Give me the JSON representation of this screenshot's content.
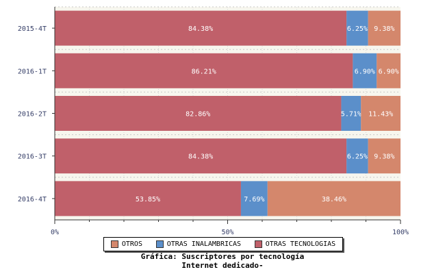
{
  "chart_data": {
    "type": "bar",
    "orientation": "horizontal",
    "stacked": true,
    "categories": [
      "2015-4T",
      "2016-1T",
      "2016-2T",
      "2016-3T",
      "2016-4T"
    ],
    "series": [
      {
        "name": "OTRAS TECNOLOGIAS",
        "color": "#c0606a",
        "values": [
          84.38,
          86.21,
          82.86,
          84.38,
          53.85
        ],
        "labels": [
          "84.38%",
          "86.21%",
          "82.86%",
          "84.38%",
          "53.85%"
        ]
      },
      {
        "name": "OTRAS INALAMBRICAS",
        "color": "#5b8fca",
        "values": [
          6.25,
          6.9,
          5.71,
          6.25,
          7.69
        ],
        "labels": [
          "6.25%",
          "6.90%",
          "5.71%",
          "6.25%",
          "7.69%"
        ]
      },
      {
        "name": "OTROS",
        "color": "#d4876c",
        "values": [
          9.38,
          6.9,
          11.43,
          9.38,
          38.46
        ],
        "labels": [
          "9.38%",
          "6.90%",
          "11.43%",
          "9.38%",
          "38.46%"
        ]
      }
    ],
    "xlim": [
      0,
      100
    ],
    "xticks": [
      "0%",
      "50%",
      "100%"
    ],
    "grid": true,
    "legend": {
      "position": "bottom",
      "entries": [
        "OTROS",
        "OTRAS INALAMBRICAS",
        "OTRAS TECNOLOGIAS"
      ]
    },
    "caption_line1": "Gráfica: Suscriptores por tecnología",
    "caption_line2": "Internet dedicado-"
  }
}
